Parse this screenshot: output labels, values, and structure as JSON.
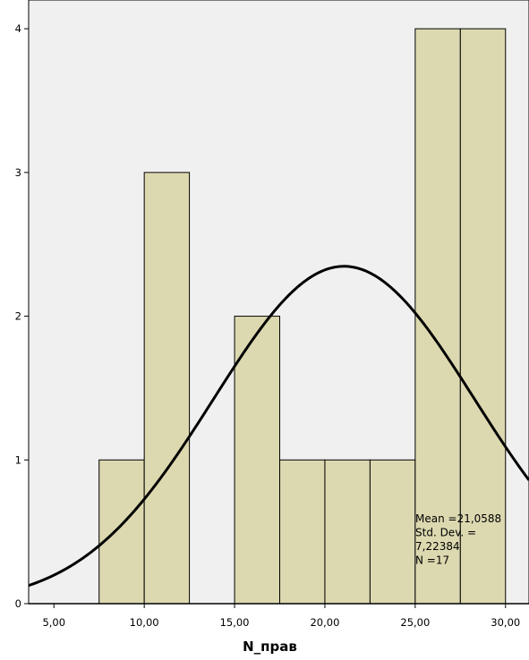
{
  "chart_data": {
    "type": "bar",
    "subtype": "histogram",
    "xlabel": "N_прав",
    "ylabel": "",
    "x_ticks": [
      5,
      10,
      15,
      20,
      25,
      30
    ],
    "x_tick_labels": [
      "5,00",
      "10,00",
      "15,00",
      "20,00",
      "25,00",
      "30,00"
    ],
    "y_ticks": [
      0,
      1,
      2,
      3,
      4
    ],
    "y_tick_labels": [
      "0",
      "1",
      "2",
      "3",
      "4"
    ],
    "xlim": [
      3.6,
      31.3
    ],
    "ylim": [
      0,
      4.2
    ],
    "bins": [
      {
        "start": 7.5,
        "end": 10.0,
        "count": 1
      },
      {
        "start": 10.0,
        "end": 12.5,
        "count": 3
      },
      {
        "start": 12.5,
        "end": 15.0,
        "count": 0
      },
      {
        "start": 15.0,
        "end": 17.5,
        "count": 2
      },
      {
        "start": 17.5,
        "end": 20.0,
        "count": 1
      },
      {
        "start": 20.0,
        "end": 22.5,
        "count": 1
      },
      {
        "start": 22.5,
        "end": 25.0,
        "count": 1
      },
      {
        "start": 25.0,
        "end": 27.5,
        "count": 4
      },
      {
        "start": 27.5,
        "end": 30.0,
        "count": 4
      }
    ],
    "normal_curve": {
      "mean": 21.0588,
      "std_dev": 7.22384,
      "n": 17,
      "bin_width": 2.5
    },
    "stats_lines": [
      "Mean =21,0588",
      "Std. Dev. =",
      "7,22384",
      "N =17"
    ],
    "grid": false,
    "colors": {
      "bar_fill": "#dcd9b0",
      "bar_stroke": "#000000",
      "plot_bg": "#f0f0f0",
      "curve": "#000000"
    }
  }
}
